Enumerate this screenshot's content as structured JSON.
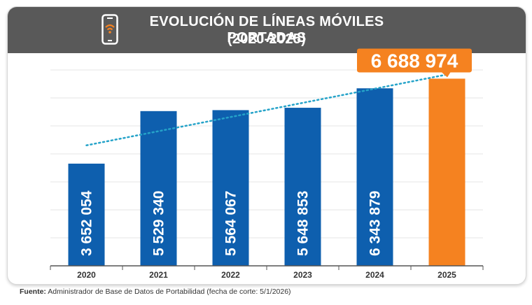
{
  "header": {
    "title_line1": "EVOLUCIÓN DE LÍNEAS MÓVILES PORTADAS",
    "title_line2": "(2020-2025)",
    "icon": "phone-wifi-icon"
  },
  "chart_data": {
    "type": "bar",
    "categories": [
      "2020",
      "2021",
      "2022",
      "2023",
      "2024",
      "2025"
    ],
    "values": [
      3652054,
      5529340,
      5564067,
      5648853,
      6343879,
      6688974
    ],
    "value_labels": [
      "3 652 054",
      "5 529 340",
      "5 564 067",
      "5 648 853",
      "6 343 879",
      "6 688 974"
    ],
    "highlight_index": 5,
    "trendline": true,
    "ylim": [
      0,
      7000000
    ],
    "grid": true,
    "xlabel": "",
    "ylabel": ""
  },
  "colors": {
    "bar": "#0e5fae",
    "highlight": "#f58220",
    "trend": "#25a3c9",
    "header": "#595959",
    "grid": "#e6e6e6"
  },
  "source": {
    "label": "Fuente:",
    "text": " Administrador de Base de Datos de Portabilidad (fecha de corte: 5/1/2026)"
  }
}
